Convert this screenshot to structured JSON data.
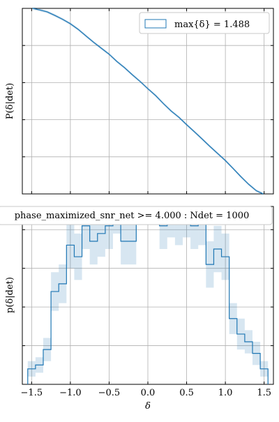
{
  "chart_data": [
    {
      "type": "line",
      "ylabel": "P(δ|det)",
      "xlim": [
        -1.62,
        1.62
      ],
      "legend": {
        "label": "max{δ} = 1.488",
        "placement": "top-right"
      },
      "grid": true,
      "color": "#1f77b4",
      "series": [
        {
          "x": [
            -1.488,
            -1.4,
            -1.3,
            -1.2,
            -1.1,
            -1.0,
            -0.9,
            -0.8,
            -0.7,
            -0.6,
            -0.5,
            -0.4,
            -0.3,
            -0.2,
            -0.1,
            0.0,
            0.1,
            0.2,
            0.3,
            0.4,
            0.5,
            0.6,
            0.7,
            0.8,
            0.9,
            1.0,
            1.1,
            1.2,
            1.3,
            1.4,
            1.488
          ],
          "y": [
            1.0,
            0.992,
            0.981,
            0.962,
            0.941,
            0.917,
            0.887,
            0.852,
            0.817,
            0.785,
            0.753,
            0.714,
            0.68,
            0.642,
            0.606,
            0.567,
            0.53,
            0.487,
            0.447,
            0.413,
            0.373,
            0.335,
            0.296,
            0.256,
            0.218,
            0.18,
            0.137,
            0.093,
            0.052,
            0.017,
            0.0
          ],
          "ylim": [
            0,
            1.0
          ]
        }
      ]
    },
    {
      "type": "bar",
      "title": "phase_maximized_snr_net >= 4.000 : Ndet = 1000",
      "xlabel": "δ",
      "ylabel": "p(δ|det)",
      "xlim": [
        -1.62,
        1.62
      ],
      "ylim": [
        0,
        0.46
      ],
      "grid": true,
      "color": "#1f77b4",
      "xticks": [
        "−1.5",
        "−1.0",
        "−0.5",
        "0.0",
        "0.5",
        "1.0",
        "1.5"
      ],
      "bins": {
        "edges": [
          -1.55,
          -1.45,
          -1.35,
          -1.25,
          -1.15,
          -1.05,
          -0.95,
          -0.85,
          -0.75,
          -0.65,
          -0.55,
          -0.45,
          -0.35,
          -0.25,
          -0.15,
          -0.05,
          0.05,
          0.15,
          0.25,
          0.35,
          0.45,
          0.55,
          0.65,
          0.75,
          0.85,
          0.95,
          1.05,
          1.15,
          1.25,
          1.35,
          1.45,
          1.55
        ],
        "values": [
          0.04,
          0.05,
          0.09,
          0.24,
          0.26,
          0.36,
          0.33,
          0.41,
          0.37,
          0.39,
          0.41,
          0.46,
          0.37,
          0.37,
          0.5,
          0.5,
          0.5,
          0.41,
          0.45,
          0.43,
          0.45,
          0.41,
          0.43,
          0.31,
          0.35,
          0.33,
          0.17,
          0.13,
          0.11,
          0.08,
          0.04
        ],
        "errors": [
          0.02,
          0.02,
          0.03,
          0.05,
          0.05,
          0.06,
          0.06,
          0.06,
          0.06,
          0.06,
          0.06,
          0.07,
          0.06,
          0.06,
          0.07,
          0.07,
          0.07,
          0.06,
          0.07,
          0.07,
          0.07,
          0.06,
          0.07,
          0.06,
          0.06,
          0.06,
          0.04,
          0.04,
          0.03,
          0.03,
          0.02
        ]
      }
    }
  ]
}
